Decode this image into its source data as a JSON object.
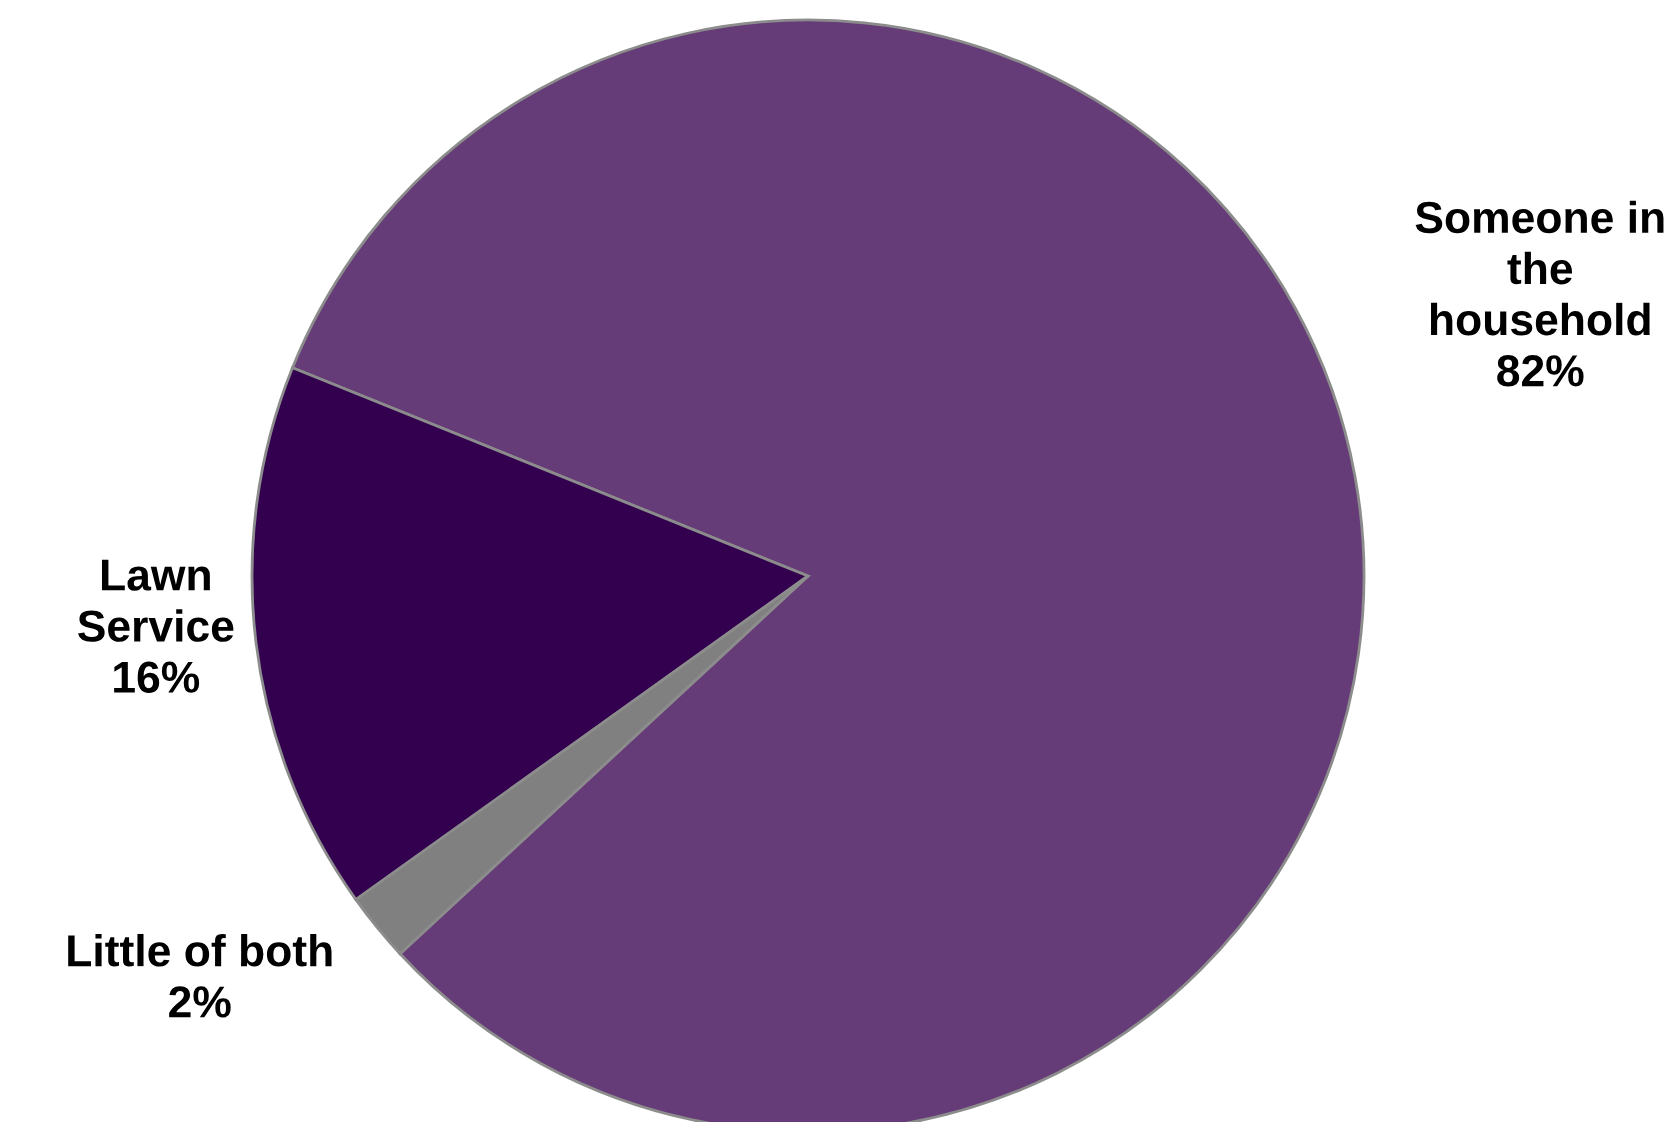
{
  "chart_data": {
    "type": "pie",
    "categories": [
      "Someone in\nthe\nhousehold",
      "Lawn\nService",
      "Little of both"
    ],
    "values": [
      82,
      16,
      2
    ],
    "value_labels": [
      "82%",
      "16%",
      "2%"
    ],
    "colors": [
      "#663c78",
      "#330050",
      "#808080"
    ],
    "legend": false
  }
}
